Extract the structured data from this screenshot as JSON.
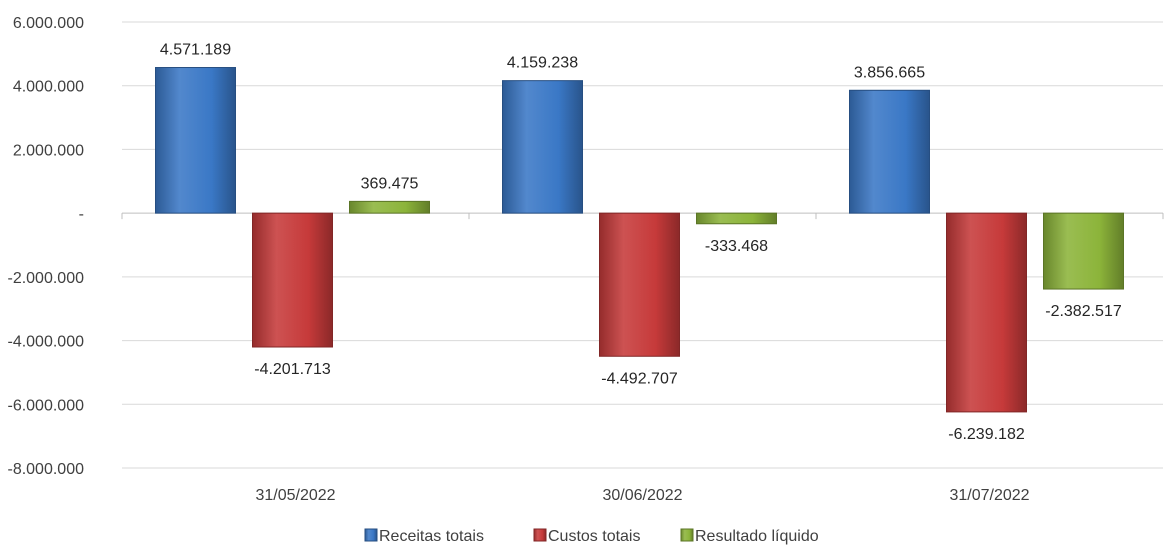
{
  "chart_data": {
    "type": "bar",
    "categories": [
      "31/05/2022",
      "30/06/2022",
      "31/07/2022"
    ],
    "series": [
      {
        "name": "Receitas totais",
        "values": [
          4571189,
          4159238,
          3856665
        ],
        "labels": [
          "4.571.189",
          "4.159.238",
          "3.856.665"
        ],
        "color": "#3a78c6"
      },
      {
        "name": "Custos totais",
        "values": [
          -4201713,
          -4492707,
          -6239182
        ],
        "labels": [
          "-4.201.713",
          "-4.492.707",
          "-6.239.182"
        ],
        "color": "#c63a3a"
      },
      {
        "name": "Resultado líquido",
        "values": [
          369475,
          -333468,
          -2382517
        ],
        "labels": [
          "369.475",
          "-333.468",
          "-2.382.517"
        ],
        "color": "#8cb43a"
      }
    ],
    "yticks": [
      {
        "value": 6000000,
        "label": "6.000.000"
      },
      {
        "value": 4000000,
        "label": "4.000.000"
      },
      {
        "value": 2000000,
        "label": "2.000.000"
      },
      {
        "value": 0,
        "label": "-"
      },
      {
        "value": -2000000,
        "label": "-2.000.000"
      },
      {
        "value": -4000000,
        "label": "-4.000.000"
      },
      {
        "value": -6000000,
        "label": "-6.000.000"
      },
      {
        "value": -8000000,
        "label": "-8.000.000"
      }
    ],
    "ylim": [
      -8000000,
      6000000
    ],
    "grid": true,
    "legend_position": "bottom"
  }
}
